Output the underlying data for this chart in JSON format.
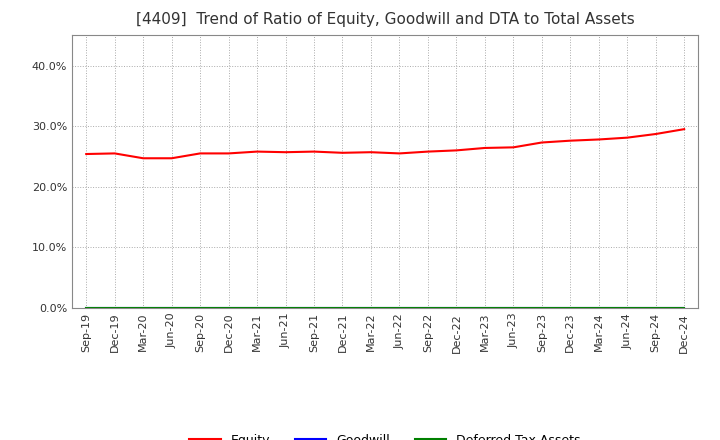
{
  "title": "[4409]  Trend of Ratio of Equity, Goodwill and DTA to Total Assets",
  "title_fontsize": 11,
  "ylim": [
    0.0,
    0.45
  ],
  "yticks": [
    0.0,
    0.1,
    0.2,
    0.3,
    0.4
  ],
  "x_labels": [
    "Sep-19",
    "Dec-19",
    "Mar-20",
    "Jun-20",
    "Sep-20",
    "Dec-20",
    "Mar-21",
    "Jun-21",
    "Sep-21",
    "Dec-21",
    "Mar-22",
    "Jun-22",
    "Sep-22",
    "Dec-22",
    "Mar-23",
    "Jun-23",
    "Sep-23",
    "Dec-23",
    "Mar-24",
    "Jun-24",
    "Sep-24",
    "Dec-24"
  ],
  "equity": [
    0.254,
    0.255,
    0.247,
    0.247,
    0.255,
    0.255,
    0.258,
    0.257,
    0.258,
    0.256,
    0.257,
    0.255,
    0.258,
    0.26,
    0.264,
    0.265,
    0.273,
    0.276,
    0.278,
    0.281,
    0.287,
    0.295
  ],
  "goodwill": [
    0.0,
    0.0,
    0.0,
    0.0,
    0.0,
    0.0,
    0.0,
    0.0,
    0.0,
    0.0,
    0.0,
    0.0,
    0.0,
    0.0,
    0.0,
    0.0,
    0.0,
    0.0,
    0.0,
    0.0,
    0.0,
    0.0
  ],
  "dta": [
    0.0,
    0.0,
    0.0,
    0.0,
    0.0,
    0.0,
    0.0,
    0.0,
    0.0,
    0.0,
    0.0,
    0.0,
    0.0,
    0.0,
    0.0,
    0.0,
    0.0,
    0.0,
    0.0,
    0.0,
    0.0,
    0.0
  ],
  "equity_color": "#ff0000",
  "goodwill_color": "#0000ff",
  "dta_color": "#008000",
  "background_color": "#ffffff",
  "grid_color": "#aaaaaa",
  "spine_color": "#888888",
  "legend_labels": [
    "Equity",
    "Goodwill",
    "Deferred Tax Assets"
  ]
}
